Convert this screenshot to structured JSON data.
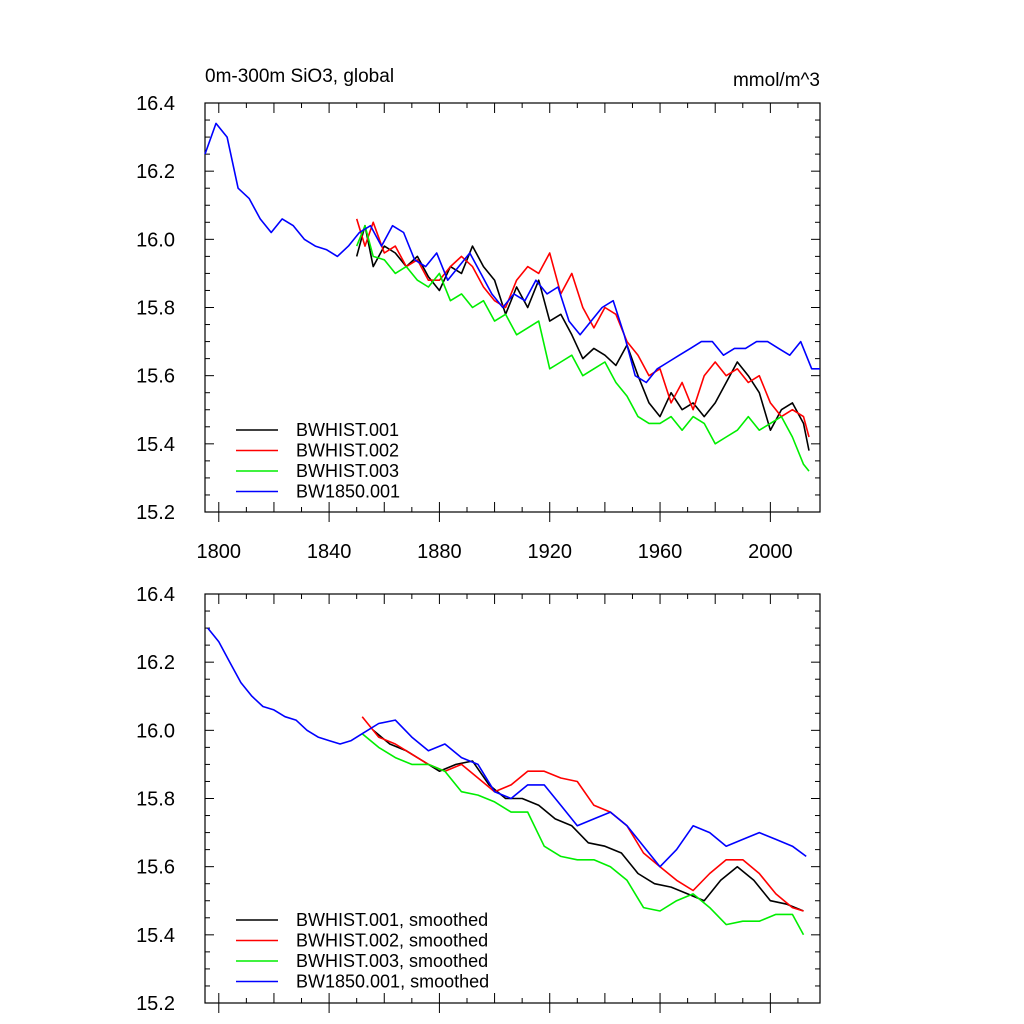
{
  "chart_data": [
    {
      "type": "line",
      "title": "0m-300m SiO3, global",
      "units": "mmol/m^3",
      "xlabel": "",
      "ylabel": "",
      "xlim": [
        1795,
        2018
      ],
      "ylim": [
        15.2,
        16.4
      ],
      "xticks": [
        1800,
        1840,
        1880,
        1920,
        1960,
        2000
      ],
      "yticks": [
        15.2,
        15.4,
        15.6,
        15.8,
        16.0,
        16.2,
        16.4
      ],
      "show_xtick_labels": true,
      "legend_position": "bottom-left",
      "series": [
        {
          "name": "BWHIST.001",
          "color": "#000000",
          "x": [
            1850,
            1853,
            1856,
            1860,
            1864,
            1868,
            1872,
            1876,
            1880,
            1884,
            1888,
            1892,
            1896,
            1900,
            1904,
            1908,
            1912,
            1916,
            1920,
            1924,
            1928,
            1932,
            1936,
            1940,
            1944,
            1948,
            1952,
            1956,
            1960,
            1964,
            1968,
            1972,
            1976,
            1980,
            1984,
            1988,
            1992,
            1996,
            2000,
            2004,
            2008,
            2012,
            2014
          ],
          "y": [
            15.95,
            16.04,
            15.92,
            15.98,
            15.96,
            15.92,
            15.95,
            15.89,
            15.85,
            15.92,
            15.9,
            15.98,
            15.92,
            15.88,
            15.78,
            15.86,
            15.8,
            15.88,
            15.76,
            15.78,
            15.72,
            15.65,
            15.68,
            15.66,
            15.63,
            15.69,
            15.6,
            15.52,
            15.48,
            15.55,
            15.5,
            15.52,
            15.48,
            15.52,
            15.58,
            15.64,
            15.6,
            15.55,
            15.44,
            15.5,
            15.52,
            15.46,
            15.38
          ]
        },
        {
          "name": "BWHIST.002",
          "color": "#ff0000",
          "x": [
            1850,
            1853,
            1856,
            1860,
            1864,
            1868,
            1872,
            1876,
            1880,
            1884,
            1888,
            1892,
            1896,
            1900,
            1904,
            1908,
            1912,
            1916,
            1920,
            1924,
            1928,
            1932,
            1936,
            1940,
            1944,
            1948,
            1952,
            1956,
            1960,
            1964,
            1968,
            1972,
            1976,
            1980,
            1984,
            1988,
            1992,
            1996,
            2000,
            2004,
            2008,
            2012,
            2014
          ],
          "y": [
            16.06,
            15.98,
            16.05,
            15.96,
            15.98,
            15.92,
            15.94,
            15.88,
            15.88,
            15.92,
            15.95,
            15.92,
            15.86,
            15.82,
            15.8,
            15.88,
            15.92,
            15.9,
            15.96,
            15.84,
            15.9,
            15.8,
            15.74,
            15.8,
            15.78,
            15.7,
            15.66,
            15.6,
            15.62,
            15.52,
            15.58,
            15.5,
            15.6,
            15.64,
            15.6,
            15.62,
            15.58,
            15.6,
            15.52,
            15.48,
            15.5,
            15.48,
            15.42
          ]
        },
        {
          "name": "BWHIST.003",
          "color": "#00ee00",
          "x": [
            1850,
            1853,
            1856,
            1860,
            1864,
            1868,
            1872,
            1876,
            1880,
            1884,
            1888,
            1892,
            1896,
            1900,
            1904,
            1908,
            1912,
            1916,
            1920,
            1924,
            1928,
            1932,
            1936,
            1940,
            1944,
            1948,
            1952,
            1956,
            1960,
            1964,
            1968,
            1972,
            1976,
            1980,
            1984,
            1988,
            1992,
            1996,
            2000,
            2004,
            2008,
            2012,
            2014
          ],
          "y": [
            15.98,
            16.04,
            15.95,
            15.94,
            15.9,
            15.92,
            15.88,
            15.86,
            15.9,
            15.82,
            15.84,
            15.8,
            15.82,
            15.76,
            15.78,
            15.72,
            15.74,
            15.76,
            15.62,
            15.64,
            15.66,
            15.6,
            15.62,
            15.64,
            15.58,
            15.54,
            15.48,
            15.46,
            15.46,
            15.48,
            15.44,
            15.48,
            15.46,
            15.4,
            15.42,
            15.44,
            15.48,
            15.44,
            15.46,
            15.48,
            15.42,
            15.34,
            15.32
          ]
        },
        {
          "name": "BW1850.001",
          "color": "#0000ff",
          "x": [
            1795,
            1799,
            1803,
            1807,
            1811,
            1815,
            1819,
            1823,
            1827,
            1831,
            1835,
            1839,
            1843,
            1847,
            1851,
            1855,
            1859,
            1863,
            1867,
            1871,
            1875,
            1879,
            1883,
            1887,
            1891,
            1895,
            1899,
            1903,
            1907,
            1911,
            1915,
            1919,
            1923,
            1927,
            1931,
            1935,
            1939,
            1943,
            1947,
            1951,
            1955,
            1959,
            1963,
            1967,
            1971,
            1975,
            1979,
            1983,
            1987,
            1991,
            1995,
            1999,
            2003,
            2007,
            2011,
            2015,
            2018
          ],
          "y": [
            16.25,
            16.34,
            16.3,
            16.15,
            16.12,
            16.06,
            16.02,
            16.06,
            16.04,
            16.0,
            15.98,
            15.97,
            15.95,
            15.98,
            16.02,
            16.04,
            15.98,
            16.04,
            16.02,
            15.94,
            15.92,
            15.96,
            15.88,
            15.92,
            15.96,
            15.9,
            15.84,
            15.8,
            15.84,
            15.82,
            15.88,
            15.84,
            15.86,
            15.76,
            15.72,
            15.76,
            15.8,
            15.82,
            15.72,
            15.6,
            15.58,
            15.62,
            15.64,
            15.66,
            15.68,
            15.7,
            15.7,
            15.66,
            15.68,
            15.68,
            15.7,
            15.7,
            15.68,
            15.66,
            15.7,
            15.62,
            15.62
          ]
        }
      ]
    },
    {
      "type": "line",
      "title": "",
      "units": "",
      "xlabel": "",
      "ylabel": "",
      "xlim": [
        1795,
        2018
      ],
      "ylim": [
        15.2,
        16.4
      ],
      "xticks": [
        1800,
        1840,
        1880,
        1920,
        1960,
        2000
      ],
      "yticks": [
        15.2,
        15.4,
        15.6,
        15.8,
        16.0,
        16.2,
        16.4
      ],
      "show_xtick_labels": false,
      "legend_position": "bottom-left",
      "series": [
        {
          "name": "BWHIST.001, smoothed",
          "color": "#000000",
          "x": [
            1856,
            1862,
            1868,
            1874,
            1880,
            1886,
            1892,
            1898,
            1904,
            1910,
            1916,
            1922,
            1928,
            1934,
            1940,
            1946,
            1952,
            1958,
            1964,
            1970,
            1976,
            1982,
            1988,
            1994,
            2000,
            2006,
            2012
          ],
          "y": [
            16.0,
            15.96,
            15.94,
            15.91,
            15.88,
            15.9,
            15.91,
            15.84,
            15.8,
            15.8,
            15.78,
            15.74,
            15.72,
            15.67,
            15.66,
            15.64,
            15.58,
            15.55,
            15.54,
            15.52,
            15.5,
            15.56,
            15.6,
            15.56,
            15.5,
            15.49,
            15.47
          ]
        },
        {
          "name": "BWHIST.002, smoothed",
          "color": "#ff0000",
          "x": [
            1852,
            1858,
            1864,
            1870,
            1876,
            1882,
            1888,
            1894,
            1900,
            1906,
            1912,
            1918,
            1924,
            1930,
            1936,
            1942,
            1948,
            1954,
            1960,
            1966,
            1972,
            1978,
            1984,
            1990,
            1996,
            2002,
            2008,
            2012
          ],
          "y": [
            16.04,
            15.98,
            15.96,
            15.93,
            15.9,
            15.88,
            15.9,
            15.86,
            15.82,
            15.84,
            15.88,
            15.88,
            15.86,
            15.85,
            15.78,
            15.76,
            15.72,
            15.64,
            15.6,
            15.56,
            15.53,
            15.58,
            15.62,
            15.62,
            15.58,
            15.52,
            15.48,
            15.47
          ]
        },
        {
          "name": "BWHIST.003, smoothed",
          "color": "#00ee00",
          "x": [
            1852,
            1858,
            1864,
            1870,
            1876,
            1882,
            1888,
            1894,
            1900,
            1906,
            1912,
            1918,
            1924,
            1930,
            1936,
            1942,
            1948,
            1954,
            1960,
            1966,
            1972,
            1978,
            1984,
            1990,
            1996,
            2002,
            2008,
            2012
          ],
          "y": [
            15.99,
            15.95,
            15.92,
            15.9,
            15.9,
            15.88,
            15.82,
            15.81,
            15.79,
            15.76,
            15.76,
            15.66,
            15.63,
            15.62,
            15.62,
            15.6,
            15.56,
            15.48,
            15.47,
            15.5,
            15.52,
            15.48,
            15.43,
            15.44,
            15.44,
            15.46,
            15.46,
            15.4
          ]
        },
        {
          "name": "BW1850.001, smoothed",
          "color": "#0000ff",
          "x": [
            1796,
            1800,
            1804,
            1808,
            1812,
            1816,
            1820,
            1824,
            1828,
            1832,
            1836,
            1840,
            1844,
            1848,
            1852,
            1858,
            1864,
            1870,
            1876,
            1882,
            1888,
            1894,
            1900,
            1906,
            1912,
            1918,
            1924,
            1930,
            1936,
            1942,
            1948,
            1954,
            1960,
            1966,
            1972,
            1978,
            1984,
            1990,
            1996,
            2002,
            2008,
            2013
          ],
          "y": [
            16.3,
            16.26,
            16.2,
            16.14,
            16.1,
            16.07,
            16.06,
            16.04,
            16.03,
            16.0,
            15.98,
            15.97,
            15.96,
            15.97,
            15.99,
            16.02,
            16.03,
            15.98,
            15.94,
            15.96,
            15.92,
            15.9,
            15.82,
            15.8,
            15.84,
            15.84,
            15.78,
            15.72,
            15.74,
            15.76,
            15.72,
            15.66,
            15.6,
            15.65,
            15.72,
            15.7,
            15.66,
            15.68,
            15.7,
            15.68,
            15.66,
            15.63
          ]
        }
      ]
    }
  ]
}
